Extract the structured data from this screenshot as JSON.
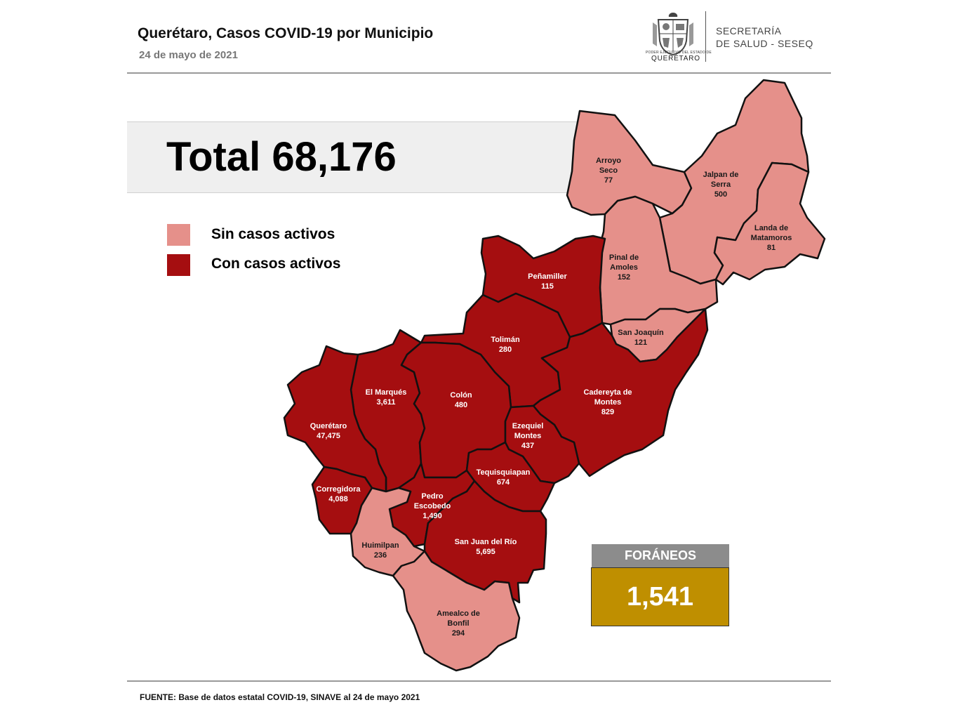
{
  "header": {
    "title": "Querétaro, Casos COVID-19 por Municipio",
    "date": "24 de mayo de 2021"
  },
  "logo": {
    "icon": "coat-of-arms-icon",
    "small_text": "PODER EJECUTIVO DEL ESTADO DE",
    "state_text": "QUERÉTARO",
    "secretaria_line1": "SECRETARÍA",
    "secretaria_line2": "DE SALUD - SESEQ"
  },
  "total": {
    "label": "Total 68,176"
  },
  "legend": {
    "items": [
      {
        "label": "Sin casos activos",
        "color": "#e5908a"
      },
      {
        "label": "Con casos activos",
        "color": "#a50e10"
      }
    ]
  },
  "colors": {
    "sin_casos": "#e5908a",
    "con_casos": "#a50e10",
    "border": "#111111",
    "foraneos_header": "#8c8c8c",
    "foraneos_box": "#bf8f00"
  },
  "municipios": [
    {
      "name_line1": "Arroyo",
      "name_line2": "Seco",
      "cases": "77",
      "status": "sin"
    },
    {
      "name_line1": "Jalpan de",
      "name_line2": "Serra",
      "cases": "500",
      "status": "sin"
    },
    {
      "name_line1": "Landa de",
      "name_line2": "Matamoros",
      "cases": "81",
      "status": "sin"
    },
    {
      "name_line1": "Pinal de",
      "name_line2": "Amoles",
      "cases": "152",
      "status": "sin"
    },
    {
      "name_line1": "San Joaquín",
      "name_line2": "",
      "cases": "121",
      "status": "sin"
    },
    {
      "name_line1": "Peñamiller",
      "name_line2": "",
      "cases": "115",
      "status": "con"
    },
    {
      "name_line1": "Tolimán",
      "name_line2": "",
      "cases": "280",
      "status": "con"
    },
    {
      "name_line1": "Cadereyta de",
      "name_line2": "Montes",
      "cases": "829",
      "status": "con"
    },
    {
      "name_line1": "El  Marqués",
      "name_line2": "",
      "cases": "3,611",
      "status": "con"
    },
    {
      "name_line1": "Colón",
      "name_line2": "",
      "cases": "480",
      "status": "con"
    },
    {
      "name_line1": "Ezequiel",
      "name_line2": "Montes",
      "cases": "437",
      "status": "con"
    },
    {
      "name_line1": "Querétaro",
      "name_line2": "",
      "cases": "47,475",
      "status": "con"
    },
    {
      "name_line1": "Tequisquiapan",
      "name_line2": "",
      "cases": "674",
      "status": "con"
    },
    {
      "name_line1": "Corregidora",
      "name_line2": "",
      "cases": "4,088",
      "status": "con"
    },
    {
      "name_line1": "Pedro",
      "name_line2": "Escobedo",
      "cases": "1,490",
      "status": "con"
    },
    {
      "name_line1": "Huimilpan",
      "name_line2": "",
      "cases": "236",
      "status": "sin"
    },
    {
      "name_line1": "San Juan del Río",
      "name_line2": "",
      "cases": "5,695",
      "status": "con"
    },
    {
      "name_line1": "Amealco de",
      "name_line2": "Bonfil",
      "cases": "294",
      "status": "sin"
    }
  ],
  "foraneos": {
    "label": "FORÁNEOS",
    "value": "1,541"
  },
  "source": "FUENTE:  Base de datos estatal COVID-19,  SINAVE  al 24 de mayo 2021"
}
